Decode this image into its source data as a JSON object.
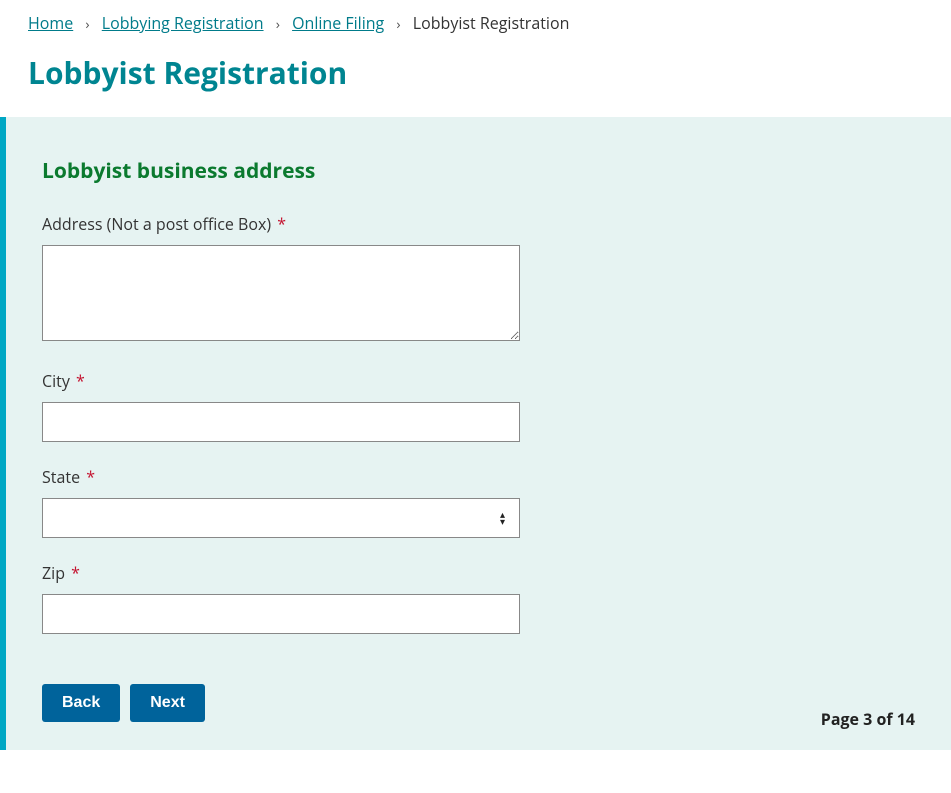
{
  "breadcrumb": {
    "home": "Home",
    "lobbying_registration": "Lobbying Registration",
    "online_filing": "Online Filing",
    "current": "Lobbyist Registration"
  },
  "page_title": "Lobbyist Registration",
  "section_title": "Lobbyist business address",
  "fields": {
    "address": {
      "label": "Address (Not a post office Box)",
      "value": ""
    },
    "city": {
      "label": "City",
      "value": ""
    },
    "state": {
      "label": "State",
      "value": ""
    },
    "zip": {
      "label": "Zip",
      "value": ""
    }
  },
  "buttons": {
    "back": "Back",
    "next": "Next"
  },
  "page_indicator": "Page 3 of 14",
  "colors": {
    "accent_border": "#00a7c4",
    "panel_bg": "#e6f3f2",
    "title": "#008591",
    "section_title": "#0b7a2f",
    "button_bg": "#00639b",
    "required": "#c4122f",
    "link": "#007b8a"
  }
}
